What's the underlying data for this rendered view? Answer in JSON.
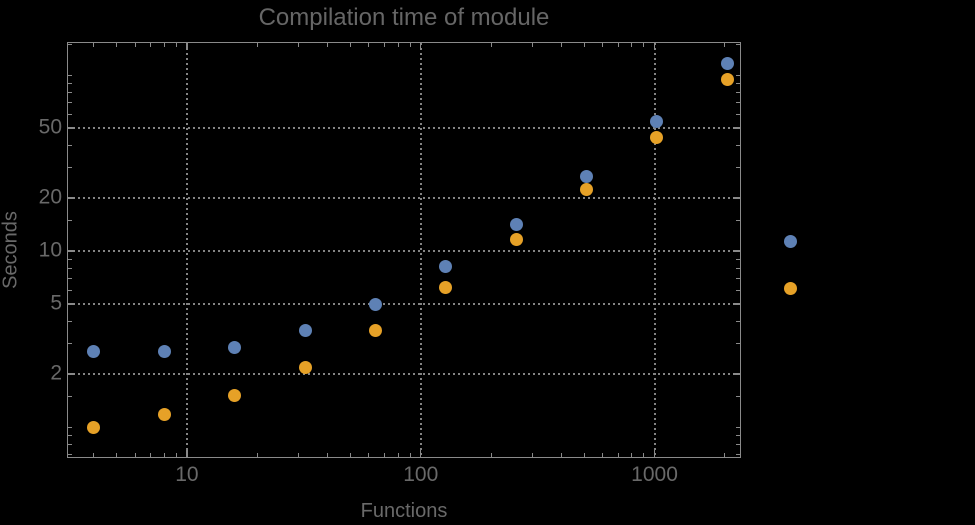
{
  "colors": {
    "background": "#000000",
    "frame": "#8a8a8a",
    "grid": "#848484",
    "text": "#696969",
    "series1": "#5e81b5",
    "series2": "#e6a127"
  },
  "chart_data": {
    "type": "scatter",
    "title": "Compilation time of module",
    "xlabel": "Functions",
    "ylabel": "Seconds",
    "xscale": "log",
    "yscale": "log",
    "xlim": [
      3.1,
      2320
    ],
    "ylim": [
      0.68,
      152.5
    ],
    "grid": "dotted-at-major-ticks",
    "x_ticks": [
      {
        "v": 10,
        "label": "10"
      },
      {
        "v": 100,
        "label": "100"
      },
      {
        "v": 1000,
        "label": "1000"
      }
    ],
    "y_ticks": [
      {
        "v": 2,
        "label": "2"
      },
      {
        "v": 5,
        "label": "5"
      },
      {
        "v": 10,
        "label": "10"
      },
      {
        "v": 20,
        "label": "20"
      },
      {
        "v": 50,
        "label": "50"
      }
    ],
    "x_minor_ticks": [
      4,
      5,
      6,
      7,
      8,
      9,
      20,
      30,
      40,
      50,
      60,
      70,
      80,
      90,
      200,
      300,
      400,
      500,
      600,
      700,
      800,
      900,
      2000
    ],
    "y_minor_ticks": [
      0.7,
      0.8,
      0.9,
      1,
      1.5,
      3,
      4,
      6,
      7,
      8,
      9,
      15,
      30,
      40,
      60,
      70,
      80,
      90,
      100,
      150
    ],
    "series": [
      {
        "name": "series-1",
        "color": "#5e81b5",
        "points": [
          [
            4,
            2.7
          ],
          [
            8,
            2.7
          ],
          [
            16,
            2.84
          ],
          [
            32,
            3.55
          ],
          [
            64,
            5.0
          ],
          [
            128,
            8.2
          ],
          [
            256,
            14.1
          ],
          [
            512,
            26.6
          ],
          [
            1024,
            54.5
          ],
          [
            2048,
            116
          ]
        ]
      },
      {
        "name": "series-2",
        "color": "#e6a127",
        "points": [
          [
            4,
            1.0
          ],
          [
            8,
            1.18
          ],
          [
            16,
            1.51
          ],
          [
            32,
            2.17
          ],
          [
            64,
            3.55
          ],
          [
            128,
            6.2
          ],
          [
            256,
            11.6
          ],
          [
            512,
            22.5
          ],
          [
            1024,
            44.5
          ],
          [
            2048,
            95
          ]
        ]
      }
    ],
    "legend": {
      "position": "right-outside",
      "labels_visible": false,
      "markers": [
        {
          "series": "series-1",
          "color": "#5e81b5"
        },
        {
          "series": "series-2",
          "color": "#e6a127"
        }
      ]
    }
  }
}
